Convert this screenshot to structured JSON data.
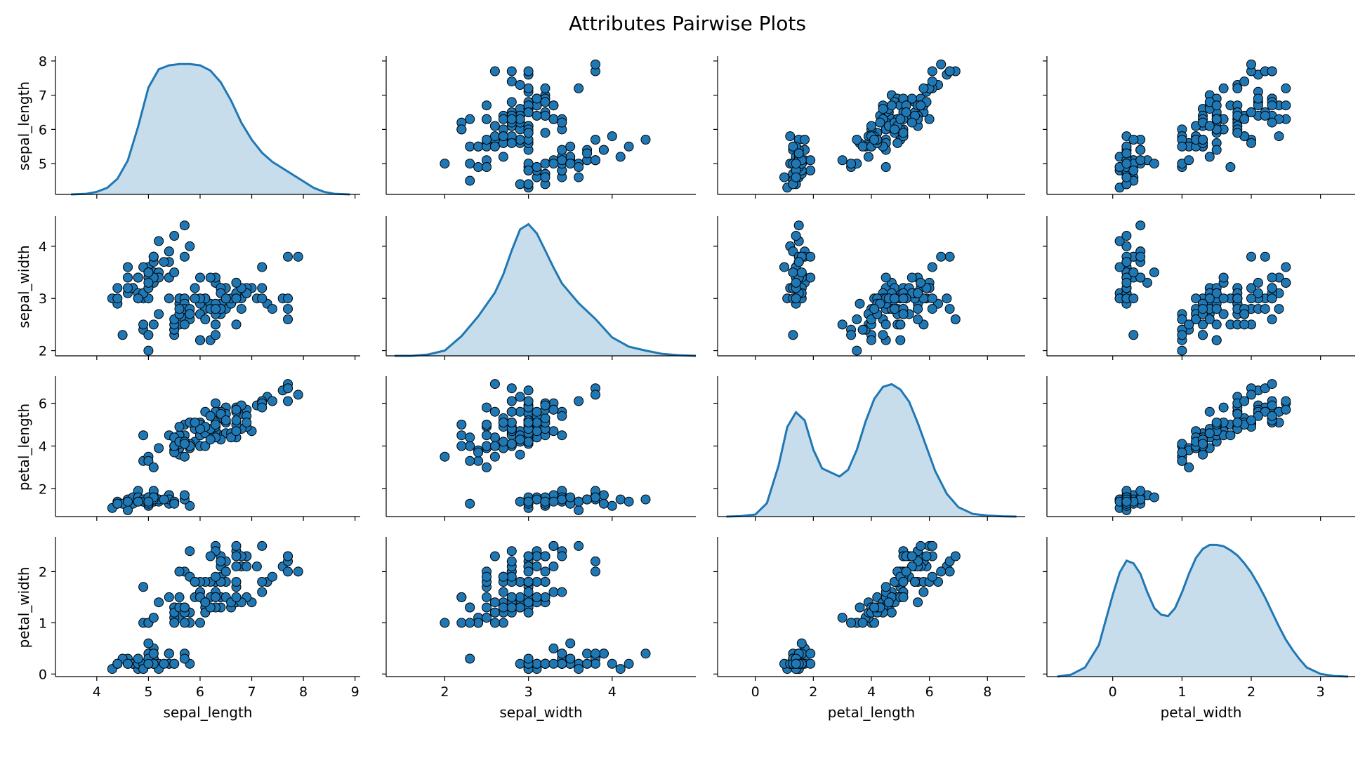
{
  "chart_data": {
    "type": "scatter",
    "title": "Attributes Pairwise Plots",
    "variables": [
      "sepal_length",
      "sepal_width",
      "petal_length",
      "petal_width"
    ],
    "diagonal": "kde",
    "point_color": "#1f77b4",
    "point_edge_color": "#000000",
    "grid": false,
    "axes": {
      "sepal_length": {
        "range": [
          3.2,
          9.1
        ],
        "ticks": [
          4,
          5,
          6,
          7,
          8,
          9
        ],
        "row_range": [
          4.1,
          8.1
        ],
        "row_ticks": [
          5,
          6,
          7,
          8
        ]
      },
      "sepal_width": {
        "range": [
          1.3,
          5.0
        ],
        "ticks": [
          2,
          3,
          4
        ],
        "row_range": [
          1.9,
          4.55
        ],
        "row_ticks": [
          2,
          3,
          4
        ]
      },
      "petal_length": {
        "range": [
          -1.3,
          9.3
        ],
        "ticks": [
          0,
          2,
          4,
          6,
          8
        ],
        "row_range": [
          0.7,
          7.2
        ],
        "row_ticks": [
          2,
          4,
          6
        ]
      },
      "petal_width": {
        "range": [
          -0.95,
          3.5
        ],
        "ticks": [
          0,
          1,
          2,
          3
        ],
        "row_range": [
          -0.05,
          2.65
        ],
        "row_ticks": [
          0,
          1,
          2
        ]
      }
    },
    "kde": {
      "sepal_length": {
        "x": [
          3.5,
          3.8,
          4.0,
          4.2,
          4.4,
          4.6,
          4.8,
          5.0,
          5.2,
          5.4,
          5.6,
          5.8,
          6.0,
          6.2,
          6.4,
          6.6,
          6.8,
          7.0,
          7.2,
          7.4,
          7.6,
          7.8,
          8.0,
          8.2,
          8.4,
          8.6,
          8.9
        ],
        "y": [
          0.0,
          0.005,
          0.02,
          0.05,
          0.12,
          0.26,
          0.52,
          0.82,
          0.96,
          0.99,
          1.0,
          1.0,
          0.99,
          0.95,
          0.86,
          0.72,
          0.55,
          0.42,
          0.32,
          0.25,
          0.2,
          0.15,
          0.1,
          0.05,
          0.02,
          0.005,
          0.0
        ]
      },
      "sepal_width": {
        "x": [
          1.4,
          1.6,
          1.8,
          2.0,
          2.2,
          2.4,
          2.6,
          2.7,
          2.8,
          2.9,
          3.0,
          3.1,
          3.2,
          3.3,
          3.4,
          3.6,
          3.8,
          4.0,
          4.2,
          4.4,
          4.6,
          4.8,
          5.0
        ],
        "y": [
          0.0,
          0.0,
          0.01,
          0.04,
          0.15,
          0.3,
          0.48,
          0.62,
          0.8,
          0.96,
          1.0,
          0.93,
          0.8,
          0.67,
          0.55,
          0.4,
          0.28,
          0.14,
          0.07,
          0.04,
          0.015,
          0.005,
          0.0
        ]
      },
      "petal_length": {
        "x": [
          -1.0,
          -0.5,
          0.0,
          0.4,
          0.8,
          1.1,
          1.4,
          1.7,
          2.0,
          2.3,
          2.6,
          2.9,
          3.2,
          3.5,
          3.8,
          4.1,
          4.4,
          4.7,
          5.0,
          5.3,
          5.6,
          5.9,
          6.2,
          6.6,
          7.0,
          7.5,
          8.0,
          8.5,
          9.0
        ],
        "y": [
          0.0,
          0.003,
          0.015,
          0.1,
          0.38,
          0.67,
          0.78,
          0.72,
          0.5,
          0.36,
          0.33,
          0.3,
          0.35,
          0.5,
          0.71,
          0.88,
          0.97,
          0.99,
          0.95,
          0.86,
          0.7,
          0.52,
          0.34,
          0.17,
          0.07,
          0.02,
          0.008,
          0.002,
          0.0
        ]
      },
      "petal_width": {
        "x": [
          -0.8,
          -0.6,
          -0.4,
          -0.2,
          0.0,
          0.1,
          0.2,
          0.3,
          0.4,
          0.5,
          0.6,
          0.7,
          0.8,
          0.9,
          1.0,
          1.1,
          1.2,
          1.3,
          1.4,
          1.5,
          1.6,
          1.7,
          1.8,
          1.9,
          2.0,
          2.1,
          2.2,
          2.3,
          2.4,
          2.5,
          2.6,
          2.7,
          2.8,
          3.0,
          3.2,
          3.4
        ],
        "y": [
          0.0,
          0.015,
          0.07,
          0.24,
          0.62,
          0.79,
          0.88,
          0.86,
          0.78,
          0.64,
          0.52,
          0.47,
          0.46,
          0.52,
          0.64,
          0.78,
          0.9,
          0.97,
          1.0,
          1.0,
          0.99,
          0.96,
          0.92,
          0.86,
          0.79,
          0.7,
          0.6,
          0.49,
          0.38,
          0.28,
          0.2,
          0.13,
          0.07,
          0.02,
          0.004,
          0.0
        ]
      }
    },
    "samples": [
      [
        5.1,
        3.5,
        1.4,
        0.2
      ],
      [
        4.9,
        3.0,
        1.4,
        0.2
      ],
      [
        4.7,
        3.2,
        1.3,
        0.2
      ],
      [
        4.6,
        3.1,
        1.5,
        0.2
      ],
      [
        5.0,
        3.6,
        1.4,
        0.2
      ],
      [
        5.4,
        3.9,
        1.7,
        0.4
      ],
      [
        4.6,
        3.4,
        1.4,
        0.3
      ],
      [
        5.0,
        3.4,
        1.5,
        0.2
      ],
      [
        4.4,
        2.9,
        1.4,
        0.2
      ],
      [
        4.9,
        3.1,
        1.5,
        0.1
      ],
      [
        5.4,
        3.7,
        1.5,
        0.2
      ],
      [
        4.8,
        3.4,
        1.6,
        0.2
      ],
      [
        4.8,
        3.0,
        1.4,
        0.1
      ],
      [
        4.3,
        3.0,
        1.1,
        0.1
      ],
      [
        5.8,
        4.0,
        1.2,
        0.2
      ],
      [
        5.7,
        4.4,
        1.5,
        0.4
      ],
      [
        5.4,
        3.9,
        1.3,
        0.4
      ],
      [
        5.1,
        3.5,
        1.4,
        0.3
      ],
      [
        5.7,
        3.8,
        1.7,
        0.3
      ],
      [
        5.1,
        3.8,
        1.5,
        0.3
      ],
      [
        5.4,
        3.4,
        1.7,
        0.2
      ],
      [
        5.1,
        3.7,
        1.5,
        0.4
      ],
      [
        4.6,
        3.6,
        1.0,
        0.2
      ],
      [
        5.1,
        3.3,
        1.7,
        0.5
      ],
      [
        4.8,
        3.4,
        1.9,
        0.2
      ],
      [
        5.0,
        3.0,
        1.6,
        0.2
      ],
      [
        5.0,
        3.4,
        1.6,
        0.4
      ],
      [
        5.2,
        3.5,
        1.5,
        0.2
      ],
      [
        5.2,
        3.4,
        1.4,
        0.2
      ],
      [
        4.7,
        3.2,
        1.6,
        0.2
      ],
      [
        4.8,
        3.1,
        1.6,
        0.2
      ],
      [
        5.4,
        3.4,
        1.5,
        0.4
      ],
      [
        5.2,
        4.1,
        1.5,
        0.1
      ],
      [
        5.5,
        4.2,
        1.4,
        0.2
      ],
      [
        4.9,
        3.1,
        1.5,
        0.2
      ],
      [
        5.0,
        3.2,
        1.2,
        0.2
      ],
      [
        5.5,
        3.5,
        1.3,
        0.2
      ],
      [
        4.9,
        3.6,
        1.4,
        0.1
      ],
      [
        4.4,
        3.0,
        1.3,
        0.2
      ],
      [
        5.1,
        3.4,
        1.5,
        0.2
      ],
      [
        5.0,
        3.5,
        1.3,
        0.3
      ],
      [
        4.5,
        2.3,
        1.3,
        0.3
      ],
      [
        4.4,
        3.2,
        1.3,
        0.2
      ],
      [
        5.0,
        3.5,
        1.6,
        0.6
      ],
      [
        5.1,
        3.8,
        1.9,
        0.4
      ],
      [
        4.8,
        3.0,
        1.4,
        0.3
      ],
      [
        5.1,
        3.8,
        1.6,
        0.2
      ],
      [
        4.6,
        3.2,
        1.4,
        0.2
      ],
      [
        5.3,
        3.7,
        1.5,
        0.2
      ],
      [
        5.0,
        3.3,
        1.4,
        0.2
      ],
      [
        7.0,
        3.2,
        4.7,
        1.4
      ],
      [
        6.4,
        3.2,
        4.5,
        1.5
      ],
      [
        6.9,
        3.1,
        4.9,
        1.5
      ],
      [
        5.5,
        2.3,
        4.0,
        1.3
      ],
      [
        6.5,
        2.8,
        4.6,
        1.5
      ],
      [
        5.7,
        2.8,
        4.5,
        1.3
      ],
      [
        6.3,
        3.3,
        4.7,
        1.6
      ],
      [
        4.9,
        2.4,
        3.3,
        1.0
      ],
      [
        6.6,
        2.9,
        4.6,
        1.3
      ],
      [
        5.2,
        2.7,
        3.9,
        1.4
      ],
      [
        5.0,
        2.0,
        3.5,
        1.0
      ],
      [
        5.9,
        3.0,
        4.2,
        1.5
      ],
      [
        6.0,
        2.2,
        4.0,
        1.0
      ],
      [
        6.1,
        2.9,
        4.7,
        1.4
      ],
      [
        5.6,
        2.9,
        3.6,
        1.3
      ],
      [
        6.7,
        3.1,
        4.4,
        1.4
      ],
      [
        5.6,
        3.0,
        4.5,
        1.5
      ],
      [
        5.8,
        2.7,
        4.1,
        1.0
      ],
      [
        6.2,
        2.2,
        4.5,
        1.5
      ],
      [
        5.6,
        2.5,
        3.9,
        1.1
      ],
      [
        5.9,
        3.2,
        4.8,
        1.8
      ],
      [
        6.1,
        2.8,
        4.0,
        1.3
      ],
      [
        6.3,
        2.5,
        4.9,
        1.5
      ],
      [
        6.1,
        2.8,
        4.7,
        1.2
      ],
      [
        6.4,
        2.9,
        4.3,
        1.3
      ],
      [
        6.6,
        3.0,
        4.4,
        1.4
      ],
      [
        6.8,
        2.8,
        4.8,
        1.4
      ],
      [
        6.7,
        3.0,
        5.0,
        1.7
      ],
      [
        6.0,
        2.9,
        4.5,
        1.5
      ],
      [
        5.7,
        2.6,
        3.5,
        1.0
      ],
      [
        5.5,
        2.4,
        3.8,
        1.1
      ],
      [
        5.5,
        2.4,
        3.7,
        1.0
      ],
      [
        5.8,
        2.7,
        3.9,
        1.2
      ],
      [
        6.0,
        2.7,
        5.1,
        1.6
      ],
      [
        5.4,
        3.0,
        4.5,
        1.5
      ],
      [
        6.0,
        3.4,
        4.5,
        1.6
      ],
      [
        6.7,
        3.1,
        4.7,
        1.5
      ],
      [
        6.3,
        2.3,
        4.4,
        1.3
      ],
      [
        5.6,
        3.0,
        4.1,
        1.3
      ],
      [
        5.5,
        2.5,
        4.0,
        1.3
      ],
      [
        5.5,
        2.6,
        4.4,
        1.2
      ],
      [
        6.1,
        3.0,
        4.6,
        1.4
      ],
      [
        5.8,
        2.6,
        4.0,
        1.2
      ],
      [
        5.0,
        2.3,
        3.3,
        1.0
      ],
      [
        5.6,
        2.7,
        4.2,
        1.3
      ],
      [
        5.7,
        3.0,
        4.2,
        1.2
      ],
      [
        5.7,
        2.9,
        4.2,
        1.3
      ],
      [
        6.2,
        2.9,
        4.3,
        1.3
      ],
      [
        5.1,
        2.5,
        3.0,
        1.1
      ],
      [
        5.7,
        2.8,
        4.1,
        1.3
      ],
      [
        6.3,
        3.3,
        6.0,
        2.5
      ],
      [
        5.8,
        2.7,
        5.1,
        1.9
      ],
      [
        7.1,
        3.0,
        5.9,
        2.1
      ],
      [
        6.3,
        2.9,
        5.6,
        1.8
      ],
      [
        6.5,
        3.0,
        5.8,
        2.2
      ],
      [
        7.6,
        3.0,
        6.6,
        2.1
      ],
      [
        4.9,
        2.5,
        4.5,
        1.7
      ],
      [
        7.3,
        2.9,
        6.3,
        1.8
      ],
      [
        6.7,
        2.5,
        5.8,
        1.8
      ],
      [
        7.2,
        3.6,
        6.1,
        2.5
      ],
      [
        6.5,
        3.2,
        5.1,
        2.0
      ],
      [
        6.4,
        2.7,
        5.3,
        1.9
      ],
      [
        6.8,
        3.0,
        5.5,
        2.1
      ],
      [
        5.7,
        2.5,
        5.0,
        2.0
      ],
      [
        5.8,
        2.8,
        5.1,
        2.4
      ],
      [
        6.4,
        3.2,
        5.3,
        2.3
      ],
      [
        6.5,
        3.0,
        5.5,
        1.8
      ],
      [
        7.7,
        3.8,
        6.7,
        2.2
      ],
      [
        7.7,
        2.6,
        6.9,
        2.3
      ],
      [
        6.0,
        2.2,
        5.0,
        1.5
      ],
      [
        6.9,
        3.2,
        5.7,
        2.3
      ],
      [
        5.6,
        2.8,
        4.9,
        2.0
      ],
      [
        7.7,
        2.8,
        6.7,
        2.0
      ],
      [
        6.3,
        2.7,
        4.9,
        1.8
      ],
      [
        6.7,
        3.3,
        5.7,
        2.1
      ],
      [
        7.2,
        3.2,
        6.0,
        1.8
      ],
      [
        6.2,
        2.8,
        4.8,
        1.8
      ],
      [
        6.1,
        3.0,
        4.9,
        1.8
      ],
      [
        6.4,
        2.8,
        5.6,
        2.1
      ],
      [
        7.2,
        3.0,
        5.8,
        1.6
      ],
      [
        7.4,
        2.8,
        6.1,
        1.9
      ],
      [
        7.9,
        3.8,
        6.4,
        2.0
      ],
      [
        6.4,
        2.8,
        5.6,
        2.2
      ],
      [
        6.3,
        2.8,
        5.1,
        1.5
      ],
      [
        6.1,
        2.6,
        5.6,
        1.4
      ],
      [
        7.7,
        3.0,
        6.1,
        2.3
      ],
      [
        6.3,
        3.4,
        5.6,
        2.4
      ],
      [
        6.4,
        3.1,
        5.5,
        1.8
      ],
      [
        6.0,
        3.0,
        4.8,
        1.8
      ],
      [
        6.9,
        3.1,
        5.4,
        2.1
      ],
      [
        6.7,
        3.1,
        5.6,
        2.4
      ],
      [
        6.9,
        3.1,
        5.1,
        2.3
      ],
      [
        5.8,
        2.7,
        5.1,
        1.9
      ],
      [
        6.8,
        3.2,
        5.9,
        2.3
      ],
      [
        6.7,
        3.3,
        5.7,
        2.5
      ],
      [
        6.7,
        3.0,
        5.2,
        2.3
      ],
      [
        6.3,
        2.5,
        5.0,
        1.9
      ],
      [
        6.5,
        3.0,
        5.2,
        2.0
      ],
      [
        6.2,
        3.4,
        5.4,
        2.3
      ],
      [
        5.9,
        3.0,
        5.1,
        1.8
      ]
    ]
  }
}
